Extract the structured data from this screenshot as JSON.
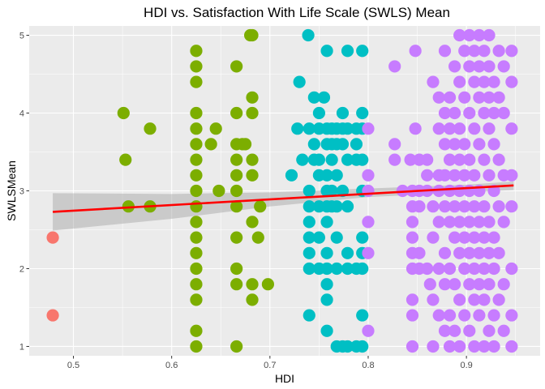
{
  "chart_data": {
    "type": "scatter",
    "title": "HDI vs. Satisfaction With Life Scale (SWLS) Mean",
    "xlabel": "HDI",
    "ylabel": "SWLSMean",
    "xlim": [
      0.455,
      0.975
    ],
    "ylim": [
      0.88,
      5.12
    ],
    "x_ticks": [
      0.5,
      0.6,
      0.7,
      0.8,
      0.9
    ],
    "x_tick_labels": [
      "0.5",
      "0.6",
      "0.7",
      "0.8",
      "0.9"
    ],
    "y_ticks": [
      1,
      2,
      3,
      4,
      5
    ],
    "y_tick_labels": [
      "1",
      "2",
      "3",
      "4",
      "5"
    ],
    "grid": true,
    "legend": "none",
    "colors": {
      "panel": "#ebebeb",
      "grid": "#ffffff",
      "group_low": "#f8766d",
      "group_medium": "#7cae00",
      "group_high": "#00bfc4",
      "group_very_high": "#c77cff",
      "trend_line": "#ff0000",
      "confidence_band": "#999999"
    },
    "groups": [
      {
        "id": "low",
        "color_key": "group_low",
        "points": [
          [
            0.479,
            2.4
          ],
          [
            0.479,
            1.4
          ]
        ]
      },
      {
        "id": "medium",
        "color_key": "group_medium",
        "points": [
          [
            0.551,
            4.0
          ],
          [
            0.553,
            3.4
          ],
          [
            0.556,
            2.8
          ],
          [
            0.578,
            3.8
          ],
          [
            0.578,
            2.8
          ],
          [
            0.625,
            4.8
          ],
          [
            0.625,
            4.6
          ],
          [
            0.625,
            4.4
          ],
          [
            0.625,
            4.0
          ],
          [
            0.625,
            3.8
          ],
          [
            0.625,
            3.6
          ],
          [
            0.625,
            3.4
          ],
          [
            0.625,
            3.2
          ],
          [
            0.625,
            3.0
          ],
          [
            0.625,
            2.8
          ],
          [
            0.625,
            2.6
          ],
          [
            0.625,
            2.4
          ],
          [
            0.625,
            2.2
          ],
          [
            0.625,
            2.0
          ],
          [
            0.625,
            1.8
          ],
          [
            0.625,
            1.6
          ],
          [
            0.625,
            1.2
          ],
          [
            0.625,
            1.0
          ],
          [
            0.64,
            3.6
          ],
          [
            0.645,
            3.8
          ],
          [
            0.648,
            3.0
          ],
          [
            0.666,
            4.6
          ],
          [
            0.666,
            4.0
          ],
          [
            0.666,
            3.6
          ],
          [
            0.666,
            3.4
          ],
          [
            0.666,
            3.2
          ],
          [
            0.666,
            3.0
          ],
          [
            0.666,
            2.8
          ],
          [
            0.666,
            2.4
          ],
          [
            0.666,
            2.0
          ],
          [
            0.666,
            1.8
          ],
          [
            0.666,
            1.0
          ],
          [
            0.672,
            3.6
          ],
          [
            0.675,
            3.6
          ],
          [
            0.68,
            5.0
          ],
          [
            0.682,
            5.0
          ],
          [
            0.682,
            4.2
          ],
          [
            0.682,
            4.0
          ],
          [
            0.682,
            3.4
          ],
          [
            0.682,
            3.2
          ],
          [
            0.682,
            2.6
          ],
          [
            0.682,
            1.8
          ],
          [
            0.682,
            1.6
          ],
          [
            0.688,
            2.4
          ],
          [
            0.69,
            2.8
          ],
          [
            0.698,
            1.8
          ]
        ]
      },
      {
        "id": "high",
        "color_key": "group_high",
        "points": [
          [
            0.73,
            4.4
          ],
          [
            0.722,
            3.2
          ],
          [
            0.728,
            3.8
          ],
          [
            0.733,
            3.4
          ],
          [
            0.739,
            5.0
          ],
          [
            0.74,
            3.8
          ],
          [
            0.74,
            3.0
          ],
          [
            0.74,
            2.8
          ],
          [
            0.74,
            2.6
          ],
          [
            0.74,
            2.4
          ],
          [
            0.74,
            2.2
          ],
          [
            0.74,
            2.0
          ],
          [
            0.74,
            1.4
          ],
          [
            0.745,
            4.2
          ],
          [
            0.745,
            3.6
          ],
          [
            0.745,
            3.4
          ],
          [
            0.75,
            4.0
          ],
          [
            0.75,
            3.8
          ],
          [
            0.75,
            3.4
          ],
          [
            0.75,
            3.2
          ],
          [
            0.75,
            2.8
          ],
          [
            0.75,
            2.4
          ],
          [
            0.75,
            2.0
          ],
          [
            0.755,
            4.2
          ],
          [
            0.758,
            4.8
          ],
          [
            0.758,
            3.8
          ],
          [
            0.758,
            3.6
          ],
          [
            0.758,
            3.2
          ],
          [
            0.758,
            3.0
          ],
          [
            0.758,
            2.8
          ],
          [
            0.758,
            2.6
          ],
          [
            0.758,
            2.2
          ],
          [
            0.758,
            2.0
          ],
          [
            0.758,
            1.8
          ],
          [
            0.758,
            1.6
          ],
          [
            0.758,
            1.2
          ],
          [
            0.763,
            3.8
          ],
          [
            0.763,
            3.6
          ],
          [
            0.763,
            3.4
          ],
          [
            0.763,
            3.0
          ],
          [
            0.763,
            2.8
          ],
          [
            0.768,
            3.8
          ],
          [
            0.768,
            3.6
          ],
          [
            0.768,
            3.2
          ],
          [
            0.768,
            2.8
          ],
          [
            0.768,
            2.4
          ],
          [
            0.768,
            2.0
          ],
          [
            0.768,
            1.0
          ],
          [
            0.774,
            4.0
          ],
          [
            0.774,
            3.8
          ],
          [
            0.774,
            3.6
          ],
          [
            0.774,
            3.0
          ],
          [
            0.774,
            1.0
          ],
          [
            0.779,
            4.8
          ],
          [
            0.779,
            3.8
          ],
          [
            0.779,
            3.4
          ],
          [
            0.779,
            2.8
          ],
          [
            0.779,
            2.2
          ],
          [
            0.779,
            2.0
          ],
          [
            0.779,
            1.0
          ],
          [
            0.788,
            3.8
          ],
          [
            0.788,
            3.6
          ],
          [
            0.788,
            3.4
          ],
          [
            0.788,
            2.0
          ],
          [
            0.788,
            1.0
          ],
          [
            0.794,
            4.8
          ],
          [
            0.794,
            4.0
          ],
          [
            0.794,
            3.8
          ],
          [
            0.794,
            3.4
          ],
          [
            0.794,
            3.0
          ],
          [
            0.794,
            2.4
          ],
          [
            0.794,
            2.2
          ],
          [
            0.794,
            2.0
          ],
          [
            0.794,
            1.4
          ],
          [
            0.794,
            1.0
          ]
        ]
      },
      {
        "id": "very_high",
        "color_key": "group_very_high",
        "points": [
          [
            0.8,
            3.8
          ],
          [
            0.8,
            3.2
          ],
          [
            0.8,
            3.0
          ],
          [
            0.8,
            2.6
          ],
          [
            0.8,
            2.2
          ],
          [
            0.8,
            1.2
          ],
          [
            0.827,
            4.6
          ],
          [
            0.827,
            3.6
          ],
          [
            0.827,
            3.4
          ],
          [
            0.835,
            3.0
          ],
          [
            0.843,
            3.4
          ],
          [
            0.845,
            3.0
          ],
          [
            0.845,
            2.8
          ],
          [
            0.845,
            2.6
          ],
          [
            0.845,
            2.4
          ],
          [
            0.845,
            2.2
          ],
          [
            0.845,
            2.0
          ],
          [
            0.845,
            1.6
          ],
          [
            0.845,
            1.4
          ],
          [
            0.845,
            1.0
          ],
          [
            0.848,
            4.8
          ],
          [
            0.848,
            3.8
          ],
          [
            0.852,
            3.4
          ],
          [
            0.852,
            3.0
          ],
          [
            0.852,
            2.8
          ],
          [
            0.852,
            2.2
          ],
          [
            0.852,
            2.0
          ],
          [
            0.86,
            3.4
          ],
          [
            0.86,
            3.2
          ],
          [
            0.86,
            3.0
          ],
          [
            0.86,
            2.0
          ],
          [
            0.863,
            1.8
          ],
          [
            0.866,
            4.4
          ],
          [
            0.866,
            2.8
          ],
          [
            0.866,
            2.4
          ],
          [
            0.866,
            1.6
          ],
          [
            0.866,
            1.0
          ],
          [
            0.872,
            4.2
          ],
          [
            0.872,
            3.8
          ],
          [
            0.872,
            3.2
          ],
          [
            0.872,
            3.0
          ],
          [
            0.872,
            2.6
          ],
          [
            0.872,
            2.0
          ],
          [
            0.872,
            1.4
          ],
          [
            0.878,
            4.8
          ],
          [
            0.878,
            4.0
          ],
          [
            0.878,
            3.6
          ],
          [
            0.878,
            3.2
          ],
          [
            0.878,
            2.8
          ],
          [
            0.878,
            2.2
          ],
          [
            0.878,
            1.8
          ],
          [
            0.878,
            1.2
          ],
          [
            0.883,
            4.2
          ],
          [
            0.883,
            3.8
          ],
          [
            0.883,
            3.4
          ],
          [
            0.883,
            3.0
          ],
          [
            0.883,
            2.6
          ],
          [
            0.883,
            2.0
          ],
          [
            0.883,
            1.4
          ],
          [
            0.883,
            1.0
          ],
          [
            0.888,
            4.6
          ],
          [
            0.888,
            4.0
          ],
          [
            0.888,
            3.6
          ],
          [
            0.888,
            3.2
          ],
          [
            0.888,
            2.8
          ],
          [
            0.888,
            2.4
          ],
          [
            0.888,
            1.8
          ],
          [
            0.888,
            1.2
          ],
          [
            0.893,
            5.0
          ],
          [
            0.893,
            4.4
          ],
          [
            0.893,
            3.8
          ],
          [
            0.893,
            3.4
          ],
          [
            0.893,
            3.0
          ],
          [
            0.893,
            2.6
          ],
          [
            0.893,
            2.2
          ],
          [
            0.893,
            1.6
          ],
          [
            0.893,
            1.0
          ],
          [
            0.898,
            4.8
          ],
          [
            0.898,
            4.2
          ],
          [
            0.898,
            3.6
          ],
          [
            0.898,
            3.2
          ],
          [
            0.898,
            2.8
          ],
          [
            0.898,
            2.4
          ],
          [
            0.898,
            2.0
          ],
          [
            0.898,
            1.4
          ],
          [
            0.903,
            5.0
          ],
          [
            0.903,
            4.6
          ],
          [
            0.903,
            4.0
          ],
          [
            0.903,
            3.4
          ],
          [
            0.903,
            3.0
          ],
          [
            0.903,
            2.6
          ],
          [
            0.903,
            2.2
          ],
          [
            0.903,
            1.8
          ],
          [
            0.903,
            1.2
          ],
          [
            0.908,
            4.8
          ],
          [
            0.908,
            4.4
          ],
          [
            0.908,
            3.8
          ],
          [
            0.908,
            3.2
          ],
          [
            0.908,
            2.8
          ],
          [
            0.908,
            2.4
          ],
          [
            0.908,
            2.0
          ],
          [
            0.908,
            1.6
          ],
          [
            0.908,
            1.0
          ],
          [
            0.913,
            5.0
          ],
          [
            0.913,
            4.6
          ],
          [
            0.913,
            4.2
          ],
          [
            0.913,
            3.6
          ],
          [
            0.913,
            3.0
          ],
          [
            0.913,
            2.6
          ],
          [
            0.913,
            2.2
          ],
          [
            0.913,
            1.8
          ],
          [
            0.913,
            1.4
          ],
          [
            0.918,
            4.8
          ],
          [
            0.918,
            4.4
          ],
          [
            0.918,
            4.0
          ],
          [
            0.918,
            3.4
          ],
          [
            0.918,
            2.8
          ],
          [
            0.918,
            2.4
          ],
          [
            0.918,
            2.0
          ],
          [
            0.918,
            1.6
          ],
          [
            0.918,
            1.0
          ],
          [
            0.923,
            5.0
          ],
          [
            0.923,
            4.6
          ],
          [
            0.923,
            4.2
          ],
          [
            0.923,
            3.8
          ],
          [
            0.923,
            3.2
          ],
          [
            0.923,
            2.6
          ],
          [
            0.923,
            2.2
          ],
          [
            0.923,
            1.8
          ],
          [
            0.923,
            1.2
          ],
          [
            0.928,
            4.4
          ],
          [
            0.928,
            4.0
          ],
          [
            0.928,
            3.6
          ],
          [
            0.928,
            3.0
          ],
          [
            0.928,
            2.4
          ],
          [
            0.928,
            2.0
          ],
          [
            0.928,
            1.4
          ],
          [
            0.928,
            1.0
          ],
          [
            0.933,
            4.8
          ],
          [
            0.933,
            4.2
          ],
          [
            0.933,
            3.4
          ],
          [
            0.933,
            2.8
          ],
          [
            0.933,
            2.2
          ],
          [
            0.933,
            1.6
          ],
          [
            0.938,
            4.6
          ],
          [
            0.938,
            4.0
          ],
          [
            0.938,
            3.2
          ],
          [
            0.938,
            2.6
          ],
          [
            0.938,
            1.8
          ],
          [
            0.938,
            1.2
          ],
          [
            0.946,
            4.8
          ],
          [
            0.946,
            4.4
          ],
          [
            0.946,
            3.8
          ],
          [
            0.946,
            3.2
          ],
          [
            0.946,
            2.8
          ],
          [
            0.946,
            2.0
          ],
          [
            0.946,
            1.4
          ],
          [
            0.946,
            1.0
          ]
        ]
      }
    ],
    "trend_line": {
      "x": [
        0.479,
        0.948
      ],
      "y": [
        2.73,
        3.07
      ]
    },
    "confidence_band": {
      "x": [
        0.479,
        0.6,
        0.7,
        0.8,
        0.9,
        0.948
      ],
      "upper": [
        2.97,
        2.96,
        2.98,
        3.03,
        3.08,
        3.12
      ],
      "lower": [
        2.49,
        2.64,
        2.8,
        2.92,
        2.98,
        3.01
      ]
    }
  }
}
